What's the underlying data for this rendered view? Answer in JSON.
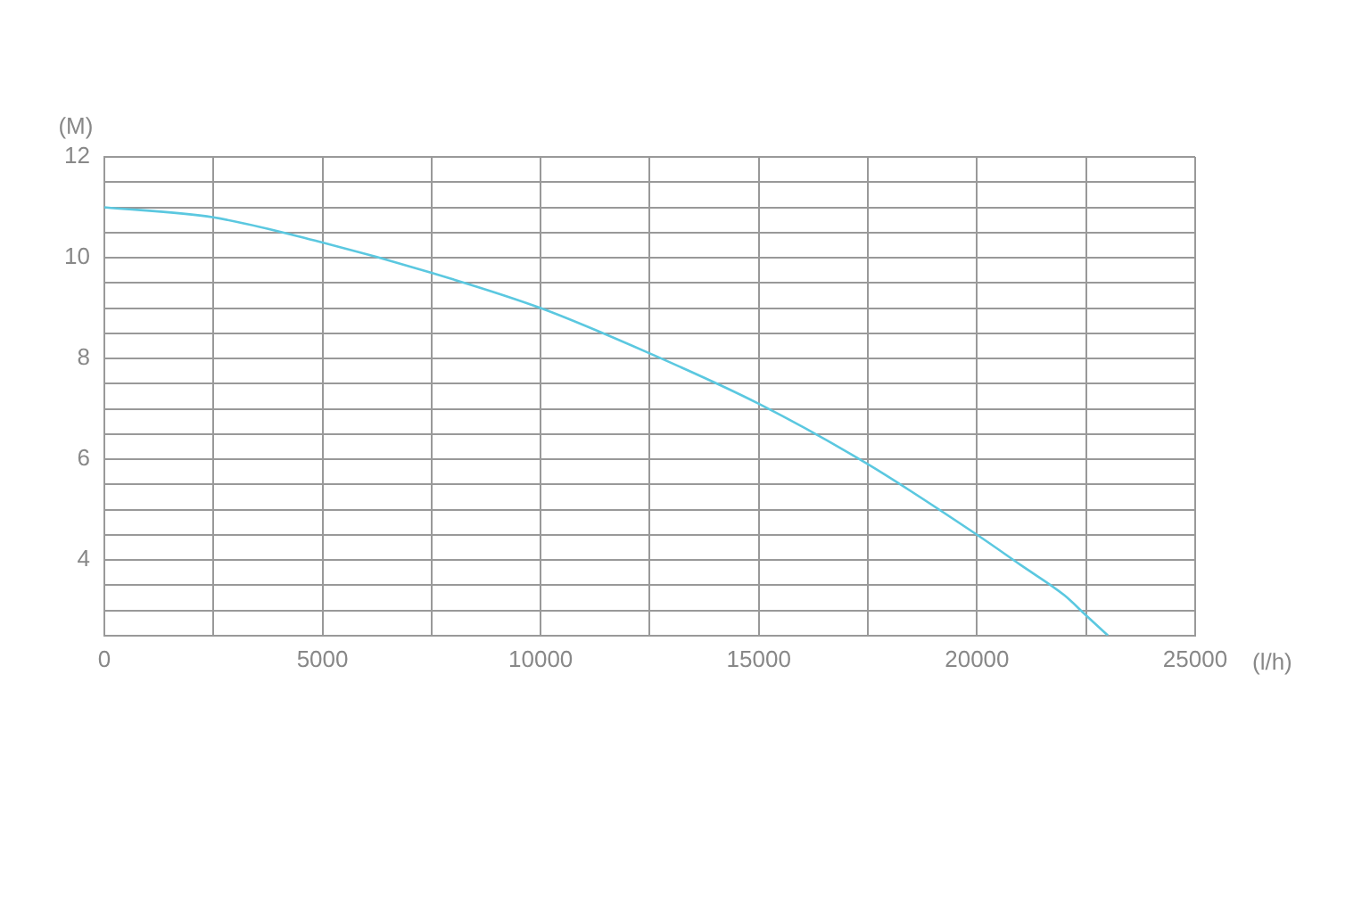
{
  "chart_data": {
    "type": "line",
    "xlabel": "(l/h)",
    "ylabel": "(M)",
    "x": [
      0,
      2500,
      5000,
      7500,
      10000,
      12500,
      15000,
      17500,
      20000,
      21000,
      22000,
      22500,
      23000
    ],
    "series": [
      {
        "color": "#5bc8e0",
        "values": [
          11.0,
          10.8,
          10.3,
          9.7,
          9.0,
          8.1,
          7.1,
          5.9,
          4.5,
          3.9,
          3.3,
          2.9,
          2.5
        ]
      }
    ],
    "xlim": [
      0,
      25000
    ],
    "xticks": [
      0,
      {
        "value": 2500,
        "label": null
      },
      5000,
      {
        "value": 7500,
        "label": null
      },
      10000,
      {
        "value": 12500,
        "label": null
      },
      15000,
      {
        "value": 17500,
        "label": null
      },
      20000,
      {
        "value": 22500,
        "label": null
      },
      25000
    ],
    "ylim": [
      2.5,
      12
    ],
    "yticks": [
      {
        "value": 3,
        "label": null
      },
      {
        "value": 3.5,
        "label": null
      },
      4,
      {
        "value": 4.5,
        "label": null
      },
      {
        "value": 5,
        "label": null
      },
      {
        "value": 5.5,
        "label": null
      },
      6,
      {
        "value": 6.5,
        "label": null
      },
      {
        "value": 7,
        "label": null
      },
      {
        "value": 7.5,
        "label": null
      },
      8,
      {
        "value": 8.5,
        "label": null
      },
      {
        "value": 9,
        "label": null
      },
      {
        "value": 9.5,
        "label": null
      },
      10,
      {
        "value": 10.5,
        "label": null
      },
      {
        "value": 11,
        "label": null
      },
      {
        "value": 11.5,
        "label": null
      },
      12
    ],
    "grid": true,
    "marker": "none",
    "line_style": "solid"
  }
}
